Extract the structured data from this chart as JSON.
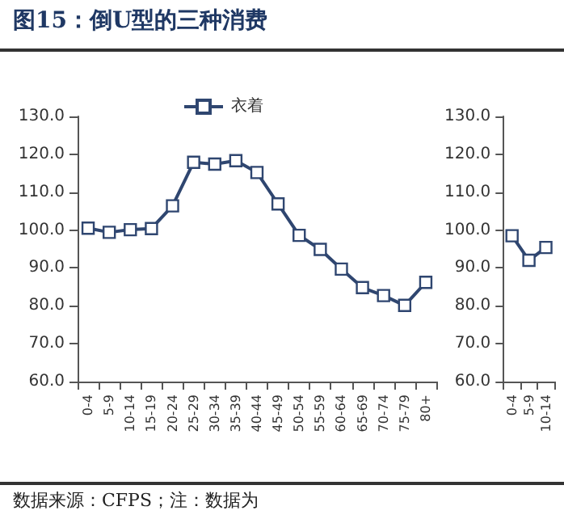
{
  "chart_data": [
    {
      "type": "line",
      "title": "图15：倒U型的三种消费",
      "categories": [
        "0-4",
        "5-9",
        "10-14",
        "15-19",
        "20-24",
        "25-29",
        "30-34",
        "35-39",
        "40-44",
        "45-49",
        "50-54",
        "55-59",
        "60-64",
        "65-69",
        "70-74",
        "75-79",
        "80+"
      ],
      "series": [
        {
          "name": "衣着",
          "color": "#2f4670",
          "values": [
            100.5,
            99.4,
            100.1,
            100.4,
            106.4,
            117.9,
            117.4,
            118.3,
            115.2,
            106.9,
            98.6,
            94.9,
            89.7,
            84.8,
            82.7,
            80.1,
            86.2
          ]
        }
      ],
      "ylim": [
        60,
        130
      ],
      "yticks": [
        {
          "value": 60,
          "label": "60.0"
        },
        {
          "value": 70,
          "label": "70.0"
        },
        {
          "value": 80,
          "label": "80.0"
        },
        {
          "value": 90,
          "label": "90.0"
        },
        {
          "value": 100,
          "label": "100.0"
        },
        {
          "value": 110,
          "label": "110.0"
        },
        {
          "value": 120,
          "label": "120.0"
        },
        {
          "value": 130,
          "label": "130.0"
        }
      ],
      "marker": "square",
      "legend": "top",
      "grid": false,
      "annotations": [
        "数据来源：CFPS；注：数据为"
      ]
    },
    {
      "type": "line",
      "categories": [
        "0-4",
        "5-9",
        "10-14"
      ],
      "series": [
        {
          "color": "#2f4670",
          "values": [
            98.5,
            92.0,
            95.4
          ]
        }
      ],
      "ylim": [
        60,
        130
      ],
      "yticks": [
        {
          "value": 60,
          "label": "60.0"
        },
        {
          "value": 70,
          "label": "70.0"
        },
        {
          "value": 80,
          "label": "80.0"
        },
        {
          "value": 90,
          "label": "90.0"
        },
        {
          "value": 100,
          "label": "100.0"
        },
        {
          "value": 110,
          "label": "110.0"
        },
        {
          "value": 120,
          "label": "120.0"
        },
        {
          "value": 130,
          "label": "130.0"
        }
      ],
      "marker": "square",
      "legend": false,
      "grid": false
    }
  ]
}
